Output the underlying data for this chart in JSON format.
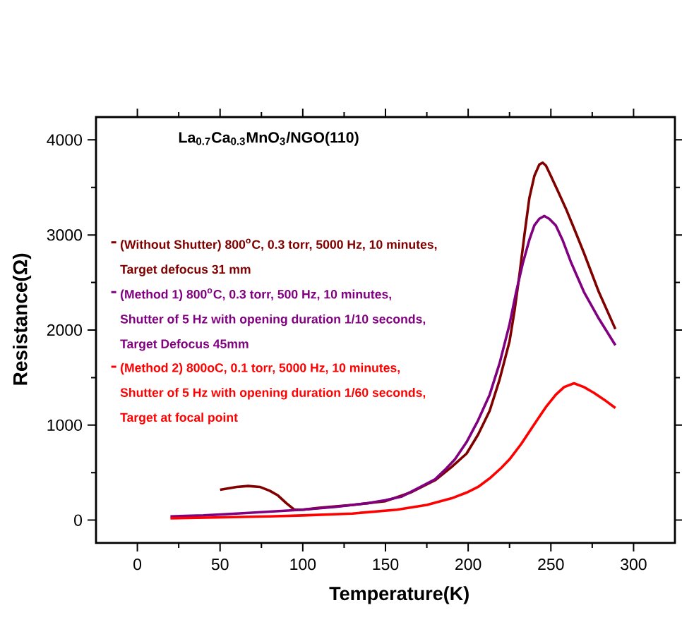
{
  "chart_data": {
    "type": "line",
    "xlabel": "Temperature(K)",
    "ylabel": "Resistance(Ω)",
    "annotations": [
      "La$_{0.7}$Ca$_{0.3}$MnO$_{3}$/NGO(110)"
    ],
    "xlim": [
      -25,
      325
    ],
    "ylim": [
      -240,
      4240
    ],
    "xticks": [
      0,
      50,
      100,
      150,
      200,
      250,
      300
    ],
    "yticks": [
      0,
      1000,
      2000,
      3000,
      4000
    ],
    "legend": "left",
    "series": [
      {
        "name": "(Without Shutter) 800$^{o}$C, 0.3 torr, 5000 Hz, 10 minutes,\nTarget defocus 31 mm",
        "color": "#800000",
        "x": [
          50,
          60,
          67,
          74,
          80,
          85,
          90,
          95,
          100,
          110,
          130,
          150,
          165,
          180,
          190,
          199,
          206,
          213,
          219,
          225,
          228,
          231,
          234,
          237,
          240,
          243,
          245,
          247,
          250,
          254,
          259,
          264,
          270,
          279,
          289
        ],
        "values": [
          320,
          350,
          360,
          350,
          310,
          260,
          180,
          110,
          110,
          130,
          160,
          200,
          290,
          420,
          560,
          700,
          900,
          1150,
          1480,
          1880,
          2200,
          2580,
          3000,
          3390,
          3620,
          3740,
          3760,
          3730,
          3620,
          3470,
          3280,
          3070,
          2810,
          2400,
          2010
        ]
      },
      {
        "name": "(Method 1) 800$^{o}$C, 0.3 torr, 500 Hz, 10 minutes,\nShutter of 5 Hz with opening duration 1/10 seconds,\nTarget Defocus 45mm",
        "color": "#800080",
        "x": [
          20,
          40,
          60,
          80,
          100,
          120,
          140,
          150,
          160,
          170,
          180,
          186,
          192,
          199,
          206,
          213,
          219,
          225,
          229,
          233,
          237,
          240,
          243,
          246,
          249,
          253,
          257,
          262,
          266,
          270,
          279,
          289
        ],
        "values": [
          40,
          50,
          70,
          90,
          110,
          140,
          180,
          210,
          250,
          340,
          430,
          530,
          640,
          820,
          1050,
          1320,
          1650,
          2060,
          2400,
          2700,
          2950,
          3100,
          3170,
          3200,
          3170,
          3100,
          2950,
          2720,
          2560,
          2400,
          2120,
          1840
        ]
      },
      {
        "name": "(Method 2) 800oC, 0.1 torr, 5000 Hz, 10 minutes,\nShutter of 5 Hz with opening duration 1/60 seconds,\nTarget at focal point",
        "color": "#ff0000",
        "x": [
          20,
          50,
          80,
          100,
          130,
          157,
          175,
          190,
          199,
          206,
          213,
          220,
          225,
          232,
          240,
          247,
          253,
          258,
          264,
          270,
          276,
          282,
          289
        ],
        "values": [
          20,
          30,
          40,
          50,
          70,
          110,
          160,
          230,
          290,
          350,
          440,
          550,
          640,
          800,
          1010,
          1190,
          1320,
          1400,
          1440,
          1400,
          1340,
          1270,
          1180
        ]
      }
    ]
  }
}
